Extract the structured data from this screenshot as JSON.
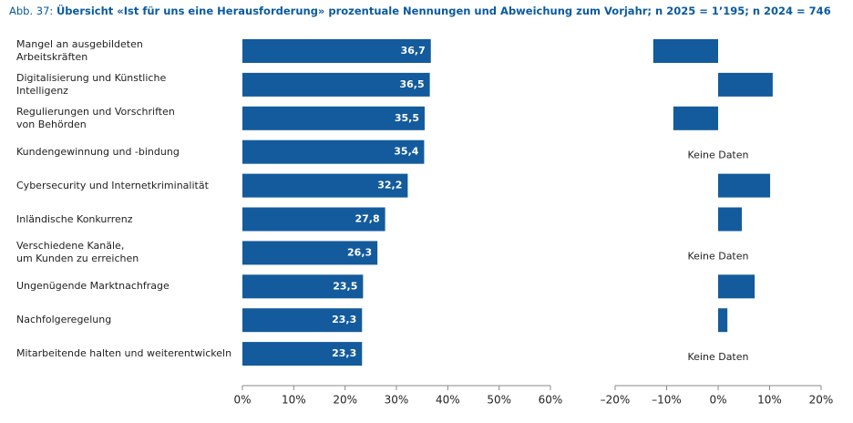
{
  "chart_data": [
    {
      "type": "bar",
      "figure_label": "Abb. 37:",
      "title": "Übersicht «Ist für uns eine Herausforderung» prozentuale Nennungen und Abweichung zum Vorjahr; n 2025 = 1’195; n 2024 = 746",
      "categories": [
        "Mangel an ausgebildeten\nArbeitskräften",
        "Digitalisierung und Künstliche\nIntelligenz",
        "Regulierungen und Vorschriften\nvon Behörden",
        "Kundengewinnung und -bindung",
        "Cybersecurity und Internetkriminalität",
        "Inländische Konkurrenz",
        "Verschiedene Kanäle,\num Kunden zu erreichen",
        "Ungenügende Marktnachfrage",
        "Nachfolgeregelung",
        "Mitarbeitende halten und weiterentwickeln"
      ],
      "values": [
        36.7,
        36.5,
        35.5,
        35.4,
        32.2,
        27.8,
        26.3,
        23.5,
        23.3,
        23.3
      ],
      "value_labels": [
        "36,7",
        "36,5",
        "35,5",
        "35,4",
        "32,2",
        "27,8",
        "26,3",
        "23,5",
        "23,3",
        "23,3"
      ],
      "color": "#135b9c",
      "xlim": [
        0,
        60
      ],
      "xticks": [
        {
          "value": 0,
          "label": "0%"
        },
        {
          "value": 10,
          "label": "10%"
        },
        {
          "value": 20,
          "label": "20%"
        },
        {
          "value": 30,
          "label": "30%"
        },
        {
          "value": 40,
          "label": "40%"
        },
        {
          "value": 50,
          "label": "50%"
        },
        {
          "value": 60,
          "label": "60%"
        }
      ]
    },
    {
      "type": "bar",
      "values": [
        -12.6,
        10.6,
        -8.7,
        null,
        10.1,
        4.6,
        null,
        7.1,
        1.8,
        null
      ],
      "no_data_label": "Keine Daten",
      "color": "#135b9c",
      "xlim": [
        -20,
        20
      ],
      "xticks": [
        {
          "value": -20,
          "label": "–20%"
        },
        {
          "value": -10,
          "label": "–10%"
        },
        {
          "value": 0,
          "label": "0%"
        },
        {
          "value": 10,
          "label": "10%"
        },
        {
          "value": 20,
          "label": "20%"
        }
      ]
    }
  ]
}
